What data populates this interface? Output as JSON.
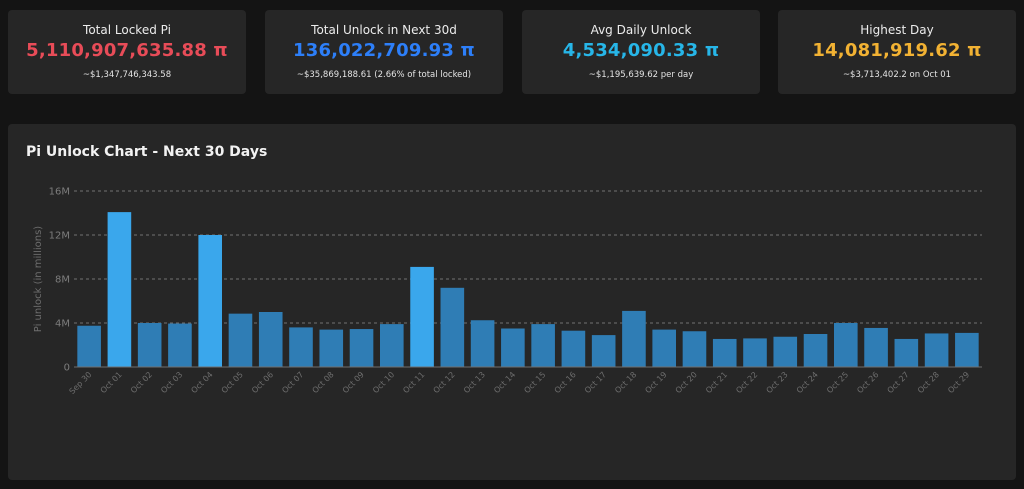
{
  "cards": [
    {
      "label": "Total Locked Pi",
      "value": "5,110,907,635.88 π",
      "sub": "~$1,347,746,343.58",
      "color": "#e84c58"
    },
    {
      "label": "Total Unlock in Next 30d",
      "value": "136,022,709.93 π",
      "sub": "~$35,869,188.61 (2.66% of total locked)",
      "color": "#2d7ff9"
    },
    {
      "label": "Avg Daily Unlock",
      "value": "4,534,090.33 π",
      "sub": "~$1,195,639.62 per day",
      "color": "#27b6e8"
    },
    {
      "label": "Highest Day",
      "value": "14,081,919.62 π",
      "sub": "~$3,713,402.2 on Oct 01",
      "color": "#f2b233"
    }
  ],
  "panel": {
    "title": "Pi Unlock Chart - Next 30 Days"
  },
  "chart_data": {
    "type": "bar",
    "title": "Pi Unlock Chart - Next 30 Days",
    "xlabel": "",
    "ylabel": "Pi unlock (in millions)",
    "ylim": [
      0,
      16
    ],
    "yticks": [
      0,
      4,
      8,
      12,
      16
    ],
    "ytick_labels": [
      "0",
      "4M",
      "8M",
      "12M",
      "16M"
    ],
    "categories": [
      "Sep 30",
      "Oct 01",
      "Oct 02",
      "Oct 03",
      "Oct 04",
      "Oct 05",
      "Oct 06",
      "Oct 07",
      "Oct 08",
      "Oct 09",
      "Oct 10",
      "Oct 11",
      "Oct 12",
      "Oct 13",
      "Oct 14",
      "Oct 15",
      "Oct 16",
      "Oct 17",
      "Oct 18",
      "Oct 19",
      "Oct 20",
      "Oct 21",
      "Oct 22",
      "Oct 23",
      "Oct 24",
      "Oct 25",
      "Oct 26",
      "Oct 27",
      "Oct 28",
      "Oct 29"
    ],
    "values": [
      3.75,
      14.08,
      4.0,
      3.95,
      12.0,
      4.85,
      5.0,
      3.6,
      3.4,
      3.45,
      3.9,
      9.1,
      7.2,
      4.25,
      3.5,
      3.9,
      3.3,
      2.9,
      5.1,
      3.4,
      3.25,
      2.55,
      2.6,
      2.75,
      3.0,
      4.0,
      3.55,
      2.55,
      3.05,
      3.1
    ],
    "highlight_threshold": 9,
    "colors": {
      "bar": "#2f7db5",
      "highlight": "#3aa7ec"
    },
    "grid": true
  }
}
